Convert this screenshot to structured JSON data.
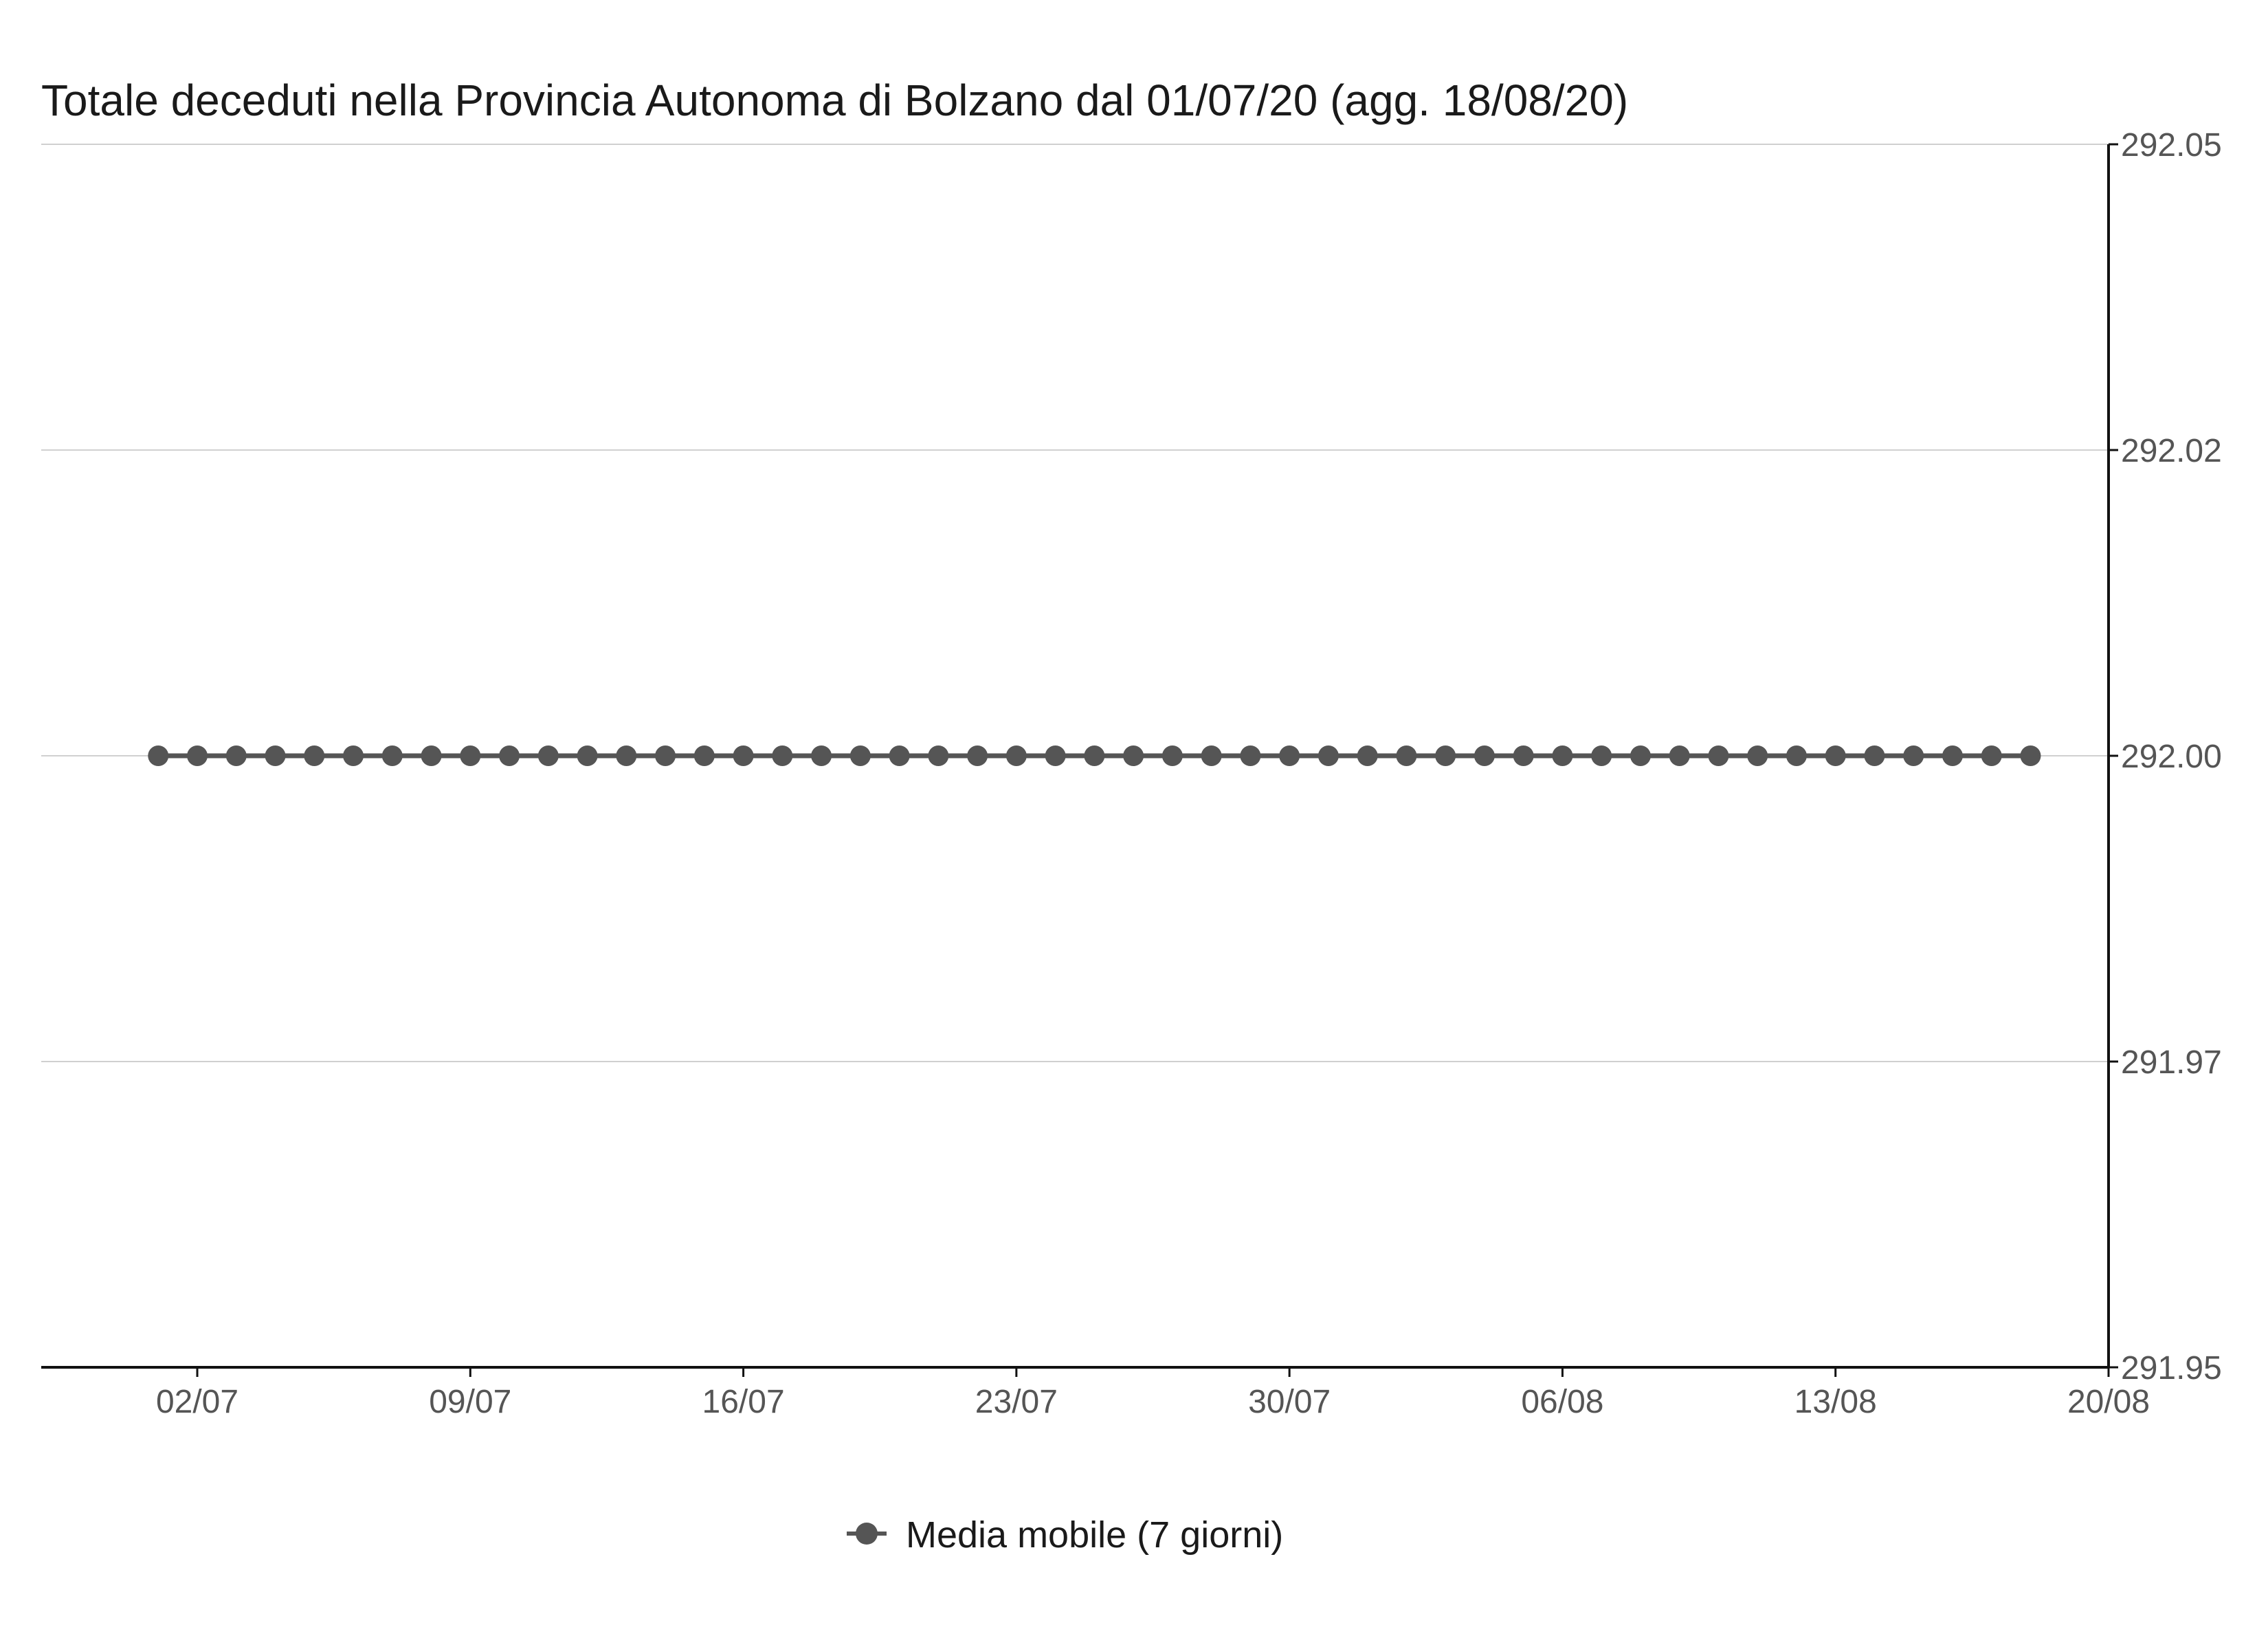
{
  "chart_data": {
    "type": "line",
    "title": "Totale deceduti nella Provincia Autonoma di Bolzano dal 01/07/20 (agg. 18/08/20)",
    "xlabel": "",
    "ylabel": "",
    "x_range": [
      "2020-06-28",
      "2020-08-20"
    ],
    "x_ticks": [
      {
        "date": "2020-07-02",
        "label": "02/07"
      },
      {
        "date": "2020-07-09",
        "label": "09/07"
      },
      {
        "date": "2020-07-16",
        "label": "16/07"
      },
      {
        "date": "2020-07-23",
        "label": "23/07"
      },
      {
        "date": "2020-07-30",
        "label": "30/07"
      },
      {
        "date": "2020-08-06",
        "label": "06/08"
      },
      {
        "date": "2020-08-13",
        "label": "13/08"
      },
      {
        "date": "2020-08-20",
        "label": "20/08"
      }
    ],
    "ylim": [
      291.95,
      292.05
    ],
    "y_ticks": [
      {
        "value": 292.05,
        "label": "292.05"
      },
      {
        "value": 292.025,
        "label": "292.02"
      },
      {
        "value": 292.0,
        "label": "292.00"
      },
      {
        "value": 291.975,
        "label": "291.97"
      },
      {
        "value": 291.95,
        "label": "291.95"
      }
    ],
    "y_axis_position": "right",
    "grid": "horizontal",
    "legend_position": "bottom",
    "color": "#555555",
    "series": [
      {
        "name": "Media mobile (7 giorni)",
        "x_start": "2020-07-01",
        "x_end": "2020-08-18",
        "values": [
          292,
          292,
          292,
          292,
          292,
          292,
          292,
          292,
          292,
          292,
          292,
          292,
          292,
          292,
          292,
          292,
          292,
          292,
          292,
          292,
          292,
          292,
          292,
          292,
          292,
          292,
          292,
          292,
          292,
          292,
          292,
          292,
          292,
          292,
          292,
          292,
          292,
          292,
          292,
          292,
          292,
          292,
          292,
          292,
          292,
          292,
          292,
          292,
          292
        ]
      }
    ]
  }
}
